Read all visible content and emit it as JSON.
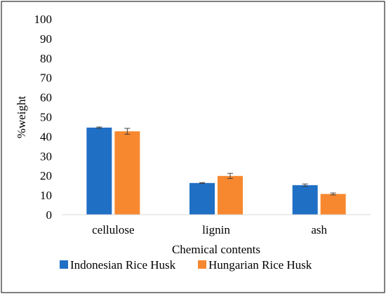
{
  "chart_data": {
    "type": "bar",
    "title": "",
    "xlabel": "Chemical contents",
    "ylabel": "%weight",
    "ylim": [
      0,
      100
    ],
    "yticks": [
      0,
      10,
      20,
      30,
      40,
      50,
      60,
      70,
      80,
      90,
      100
    ],
    "grid": false,
    "legend_position": "bottom",
    "categories": [
      "cellulose",
      "lignin",
      "ash"
    ],
    "series": [
      {
        "name": "Indonesian Rice Husk",
        "color": "#1f6fc5",
        "values": [
          44.5,
          16.2,
          15.1
        ],
        "errors": [
          0.3,
          0.2,
          0.6
        ]
      },
      {
        "name": "Hungarian Rice Husk",
        "color": "#f7882f",
        "values": [
          42.6,
          19.8,
          10.6
        ],
        "errors": [
          1.5,
          1.3,
          0.5
        ]
      }
    ]
  }
}
